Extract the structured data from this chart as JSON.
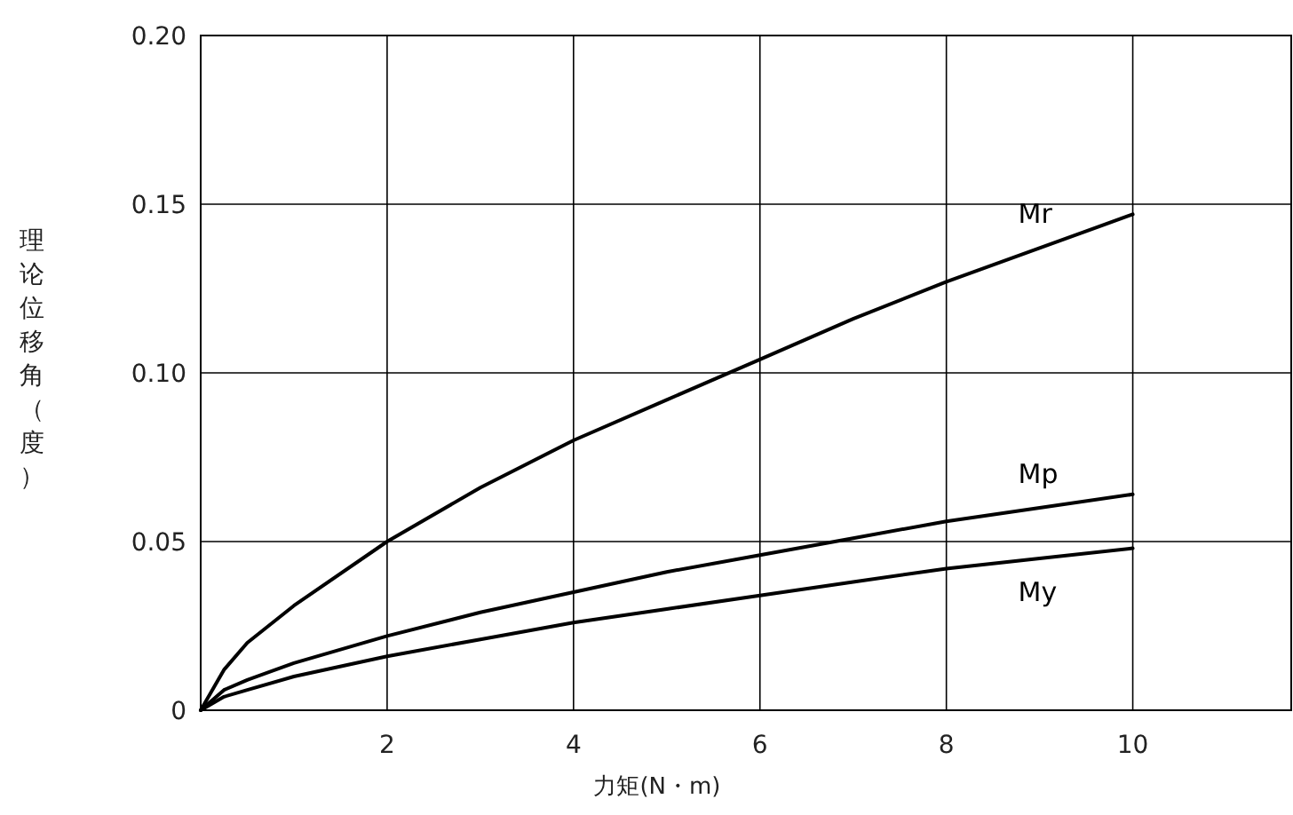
{
  "chart_data": {
    "type": "line",
    "xlabel": "力矩(N・m)",
    "ylabel": "理论位移角（度）",
    "x": [
      0,
      0.25,
      0.5,
      1,
      2,
      3,
      4,
      5,
      6,
      7,
      8,
      9,
      10
    ],
    "series": [
      {
        "name": "Mr",
        "color": "#000000",
        "values": [
          0,
          0.012,
          0.02,
          0.031,
          0.05,
          0.066,
          0.08,
          0.092,
          0.104,
          0.116,
          0.127,
          0.137,
          0.147
        ]
      },
      {
        "name": "Mp",
        "color": "#000000",
        "values": [
          0,
          0.006,
          0.009,
          0.014,
          0.022,
          0.029,
          0.035,
          0.041,
          0.046,
          0.051,
          0.056,
          0.06,
          0.064
        ]
      },
      {
        "name": "My",
        "color": "#000000",
        "values": [
          0,
          0.004,
          0.006,
          0.01,
          0.016,
          0.021,
          0.026,
          0.03,
          0.034,
          0.038,
          0.042,
          0.045,
          0.048
        ]
      }
    ],
    "xlim": [
      0,
      11.7
    ],
    "ylim": [
      0,
      0.2
    ],
    "xticks": [
      2,
      4,
      6,
      8,
      10
    ],
    "yticks": [
      0,
      {
        "value": 0.05,
        "label": "0.05"
      },
      {
        "value": 0.1,
        "label": "0.10"
      },
      {
        "value": 0.15,
        "label": "0.15"
      },
      {
        "value": 0.2,
        "label": "0.20"
      }
    ],
    "grid": true,
    "marker": "none",
    "line_style": "solid"
  }
}
